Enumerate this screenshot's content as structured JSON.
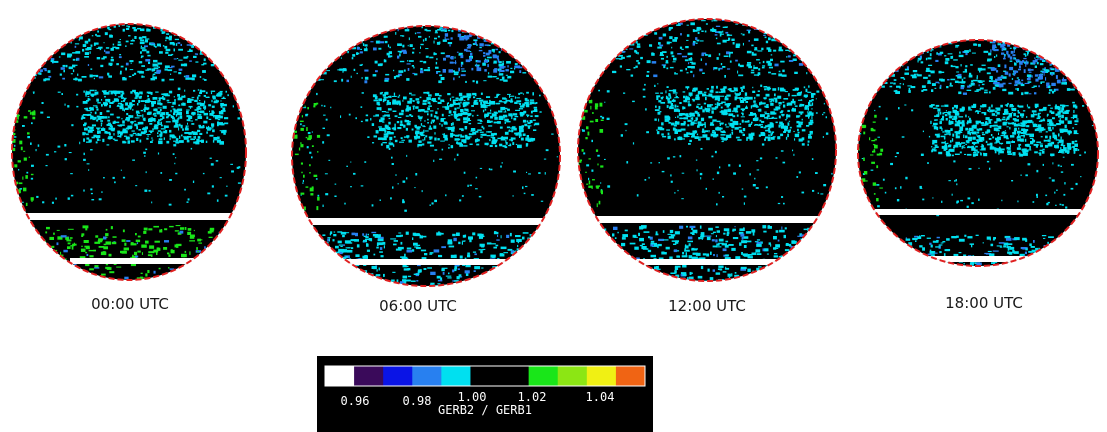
{
  "panels": [
    {
      "time_label": "00:00 UTC",
      "alt": "GERB ratio disc at 00:00 UTC"
    },
    {
      "time_label": "06:00 UTC",
      "alt": "GERB ratio disc at 06:00 UTC"
    },
    {
      "time_label": "12:00 UTC",
      "alt": "GERB ratio disc at 12:00 UTC"
    },
    {
      "time_label": "18:00 UTC",
      "alt": "GERB ratio disc at 18:00 UTC"
    }
  ],
  "colorbar": {
    "colors": [
      "#ffffff",
      "#3a0a5a",
      "#0a14e6",
      "#2880f0",
      "#00e0f0",
      "#000000",
      "#000000",
      "#19e619",
      "#8ce614",
      "#f0f014",
      "#f06414"
    ],
    "tick_labels": [
      "0.96",
      "0.98",
      "1.00",
      "1.02",
      "1.04"
    ],
    "title": "GERB2 / GERB1"
  },
  "palette": {
    "outline": "#e02020",
    "disc_background": "#000000",
    "cyan": "#00e0f0",
    "blue": "#2880f0",
    "green": "#19e619",
    "white_band": "#ffffff"
  }
}
